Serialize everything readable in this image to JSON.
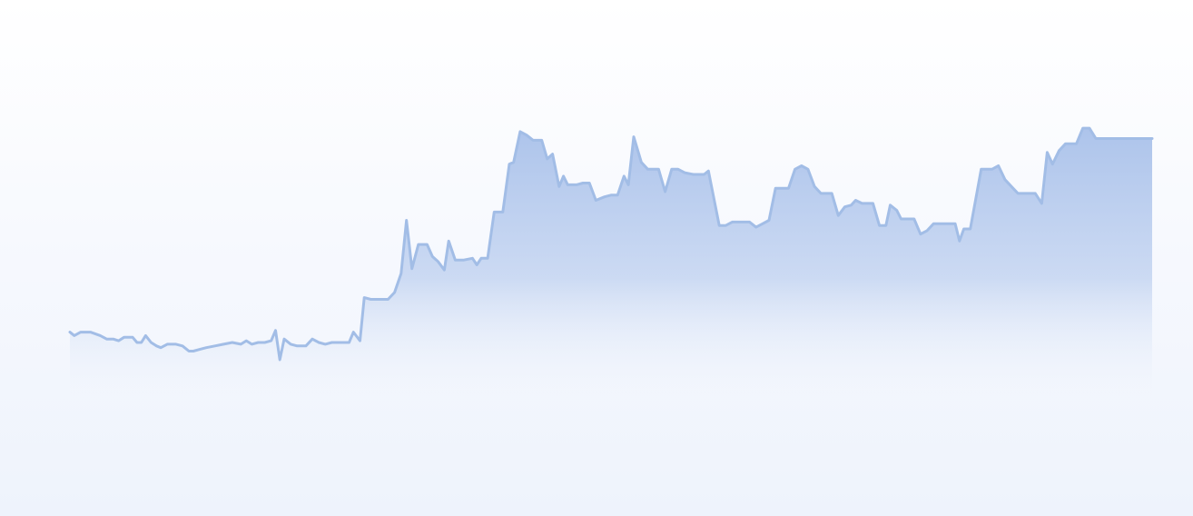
{
  "colors": {
    "line": "#a2bde6",
    "fill_top": "#a9c1ea",
    "fill_bottom": "#eef3fc",
    "background_top": "#ffffff",
    "background_bottom": "#eef3fc"
  },
  "chart_data": {
    "type": "area",
    "title": "",
    "xlabel": "",
    "ylabel": "",
    "grid": false,
    "legend": "none",
    "axes_visible": false,
    "xlim": [
      0,
      1
    ],
    "ylim": [
      0,
      100
    ],
    "series": [
      {
        "values": [
          [
            0.0,
            32.2
          ],
          [
            0.004,
            31.2
          ],
          [
            0.01,
            32.2
          ],
          [
            0.019,
            32.2
          ],
          [
            0.028,
            31.2
          ],
          [
            0.034,
            30.2
          ],
          [
            0.04,
            30.2
          ],
          [
            0.045,
            29.7
          ],
          [
            0.05,
            30.7
          ],
          [
            0.058,
            30.7
          ],
          [
            0.062,
            29.2
          ],
          [
            0.066,
            29.2
          ],
          [
            0.07,
            31.2
          ],
          [
            0.075,
            29.2
          ],
          [
            0.08,
            28.2
          ],
          [
            0.084,
            27.7
          ],
          [
            0.09,
            28.7
          ],
          [
            0.098,
            28.7
          ],
          [
            0.104,
            28.2
          ],
          [
            0.11,
            26.7
          ],
          [
            0.114,
            26.7
          ],
          [
            0.12,
            27.2
          ],
          [
            0.126,
            27.7
          ],
          [
            0.134,
            28.2
          ],
          [
            0.142,
            28.7
          ],
          [
            0.15,
            29.2
          ],
          [
            0.158,
            28.7
          ],
          [
            0.163,
            29.7
          ],
          [
            0.168,
            28.7
          ],
          [
            0.174,
            29.2
          ],
          [
            0.18,
            29.2
          ],
          [
            0.186,
            29.7
          ],
          [
            0.19,
            32.7
          ],
          [
            0.194,
            24.2
          ],
          [
            0.198,
            30.2
          ],
          [
            0.204,
            28.7
          ],
          [
            0.21,
            28.2
          ],
          [
            0.218,
            28.2
          ],
          [
            0.224,
            30.2
          ],
          [
            0.23,
            29.2
          ],
          [
            0.236,
            28.7
          ],
          [
            0.242,
            29.2
          ],
          [
            0.25,
            29.2
          ],
          [
            0.258,
            29.2
          ],
          [
            0.262,
            32.2
          ],
          [
            0.268,
            29.7
          ],
          [
            0.272,
            42.2
          ],
          [
            0.278,
            41.7
          ],
          [
            0.286,
            41.7
          ],
          [
            0.294,
            41.7
          ],
          [
            0.3,
            43.7
          ],
          [
            0.306,
            49.2
          ],
          [
            0.311,
            64.6
          ],
          [
            0.316,
            50.6
          ],
          [
            0.322,
            57.6
          ],
          [
            0.33,
            57.6
          ],
          [
            0.335,
            54.1
          ],
          [
            0.34,
            52.7
          ],
          [
            0.346,
            50.2
          ],
          [
            0.35,
            58.6
          ],
          [
            0.356,
            53.1
          ],
          [
            0.364,
            53.1
          ],
          [
            0.372,
            53.6
          ],
          [
            0.376,
            51.7
          ],
          [
            0.38,
            53.6
          ],
          [
            0.386,
            53.6
          ],
          [
            0.392,
            67.0
          ],
          [
            0.4,
            67.0
          ],
          [
            0.406,
            80.9
          ],
          [
            0.41,
            81.4
          ],
          [
            0.416,
            90.3
          ],
          [
            0.422,
            89.3
          ],
          [
            0.428,
            87.8
          ],
          [
            0.436,
            87.8
          ],
          [
            0.441,
            82.4
          ],
          [
            0.446,
            83.8
          ],
          [
            0.452,
            74.4
          ],
          [
            0.456,
            77.4
          ],
          [
            0.46,
            74.9
          ],
          [
            0.468,
            74.9
          ],
          [
            0.474,
            75.4
          ],
          [
            0.48,
            75.4
          ],
          [
            0.486,
            70.4
          ],
          [
            0.494,
            71.4
          ],
          [
            0.5,
            71.9
          ],
          [
            0.506,
            71.9
          ],
          [
            0.512,
            77.4
          ],
          [
            0.516,
            74.9
          ],
          [
            0.521,
            88.8
          ],
          [
            0.528,
            81.4
          ],
          [
            0.534,
            79.4
          ],
          [
            0.544,
            79.4
          ],
          [
            0.55,
            72.9
          ],
          [
            0.556,
            79.4
          ],
          [
            0.562,
            79.4
          ],
          [
            0.568,
            78.4
          ],
          [
            0.576,
            77.9
          ],
          [
            0.586,
            77.9
          ],
          [
            0.59,
            78.9
          ],
          [
            0.6,
            63.1
          ],
          [
            0.606,
            63.1
          ],
          [
            0.612,
            64.1
          ],
          [
            0.62,
            64.1
          ],
          [
            0.628,
            64.1
          ],
          [
            0.634,
            62.6
          ],
          [
            0.64,
            63.6
          ],
          [
            0.646,
            64.6
          ],
          [
            0.652,
            73.9
          ],
          [
            0.664,
            73.9
          ],
          [
            0.67,
            79.4
          ],
          [
            0.676,
            80.4
          ],
          [
            0.682,
            79.4
          ],
          [
            0.688,
            74.4
          ],
          [
            0.694,
            72.4
          ],
          [
            0.704,
            72.4
          ],
          [
            0.71,
            66.0
          ],
          [
            0.716,
            68.5
          ],
          [
            0.722,
            69.0
          ],
          [
            0.726,
            70.4
          ],
          [
            0.732,
            69.5
          ],
          [
            0.742,
            69.5
          ],
          [
            0.748,
            63.1
          ],
          [
            0.754,
            63.1
          ],
          [
            0.758,
            69.0
          ],
          [
            0.764,
            67.5
          ],
          [
            0.768,
            65.0
          ],
          [
            0.78,
            65.0
          ],
          [
            0.786,
            60.6
          ],
          [
            0.792,
            61.6
          ],
          [
            0.798,
            63.6
          ],
          [
            0.806,
            63.6
          ],
          [
            0.812,
            63.6
          ],
          [
            0.818,
            63.6
          ],
          [
            0.822,
            58.6
          ],
          [
            0.826,
            62.1
          ],
          [
            0.832,
            62.1
          ],
          [
            0.836,
            69.0
          ],
          [
            0.842,
            79.4
          ],
          [
            0.852,
            79.4
          ],
          [
            0.858,
            80.4
          ],
          [
            0.864,
            76.4
          ],
          [
            0.87,
            74.4
          ],
          [
            0.876,
            72.4
          ],
          [
            0.886,
            72.4
          ],
          [
            0.892,
            72.4
          ],
          [
            0.898,
            69.5
          ],
          [
            0.903,
            84.3
          ],
          [
            0.908,
            80.9
          ],
          [
            0.914,
            84.8
          ],
          [
            0.92,
            86.8
          ],
          [
            0.93,
            86.8
          ],
          [
            0.936,
            91.3
          ],
          [
            0.942,
            91.3
          ],
          [
            0.948,
            88.3
          ],
          [
            0.96,
            88.3
          ],
          [
            1.0,
            88.3
          ]
        ]
      }
    ]
  }
}
